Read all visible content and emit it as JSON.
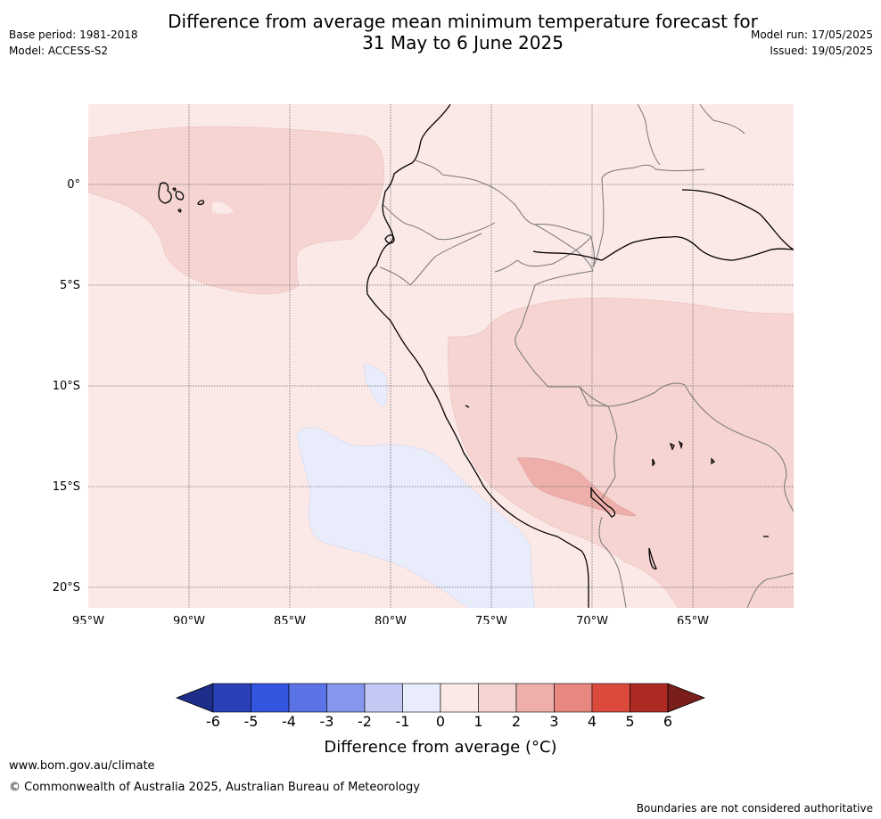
{
  "header": {
    "title_line1": "Difference from average mean minimum temperature forecast for",
    "title_line2": "31 May to 6 June 2025",
    "base_period": "Base period: 1981-2018",
    "model": "Model: ACCESS-S2",
    "model_run": "Model run: 17/05/2025",
    "issued": "Issued: 19/05/2025"
  },
  "map": {
    "lon_labels": [
      "95°W",
      "90°W",
      "85°W",
      "80°W",
      "75°W",
      "70°W",
      "65°W"
    ],
    "lat_labels": [
      "0°",
      "5°S",
      "10°S",
      "15°S",
      "20°S"
    ],
    "background_color": "#fbe9e7",
    "anomaly_1_2_color": "#f5d4d1",
    "anomaly_2_3_color": "#eeafab",
    "anomaly_neg1_0_color": "#e8ecfb"
  },
  "colorbar": {
    "ticks": [
      "-6",
      "-5",
      "-4",
      "-3",
      "-2",
      "-1",
      "0",
      "1",
      "2",
      "3",
      "4",
      "5",
      "6"
    ],
    "colors": [
      "#1f2d8a",
      "#2840b8",
      "#3355e0",
      "#5a73e6",
      "#8696ec",
      "#c2c9f5",
      "#e8ecfb",
      "#fbe9e7",
      "#f5d4d1",
      "#eeafab",
      "#e8877f",
      "#dc4a3e",
      "#ad2a22",
      "#7a1e1b"
    ],
    "title": "Difference from average (°C)"
  },
  "footer": {
    "website": "www.bom.gov.au/climate",
    "copyright": "© Commonwealth of Australia 2025, Australian Bureau of Meteorology",
    "disclaimer": "Boundaries are not considered authoritative"
  }
}
